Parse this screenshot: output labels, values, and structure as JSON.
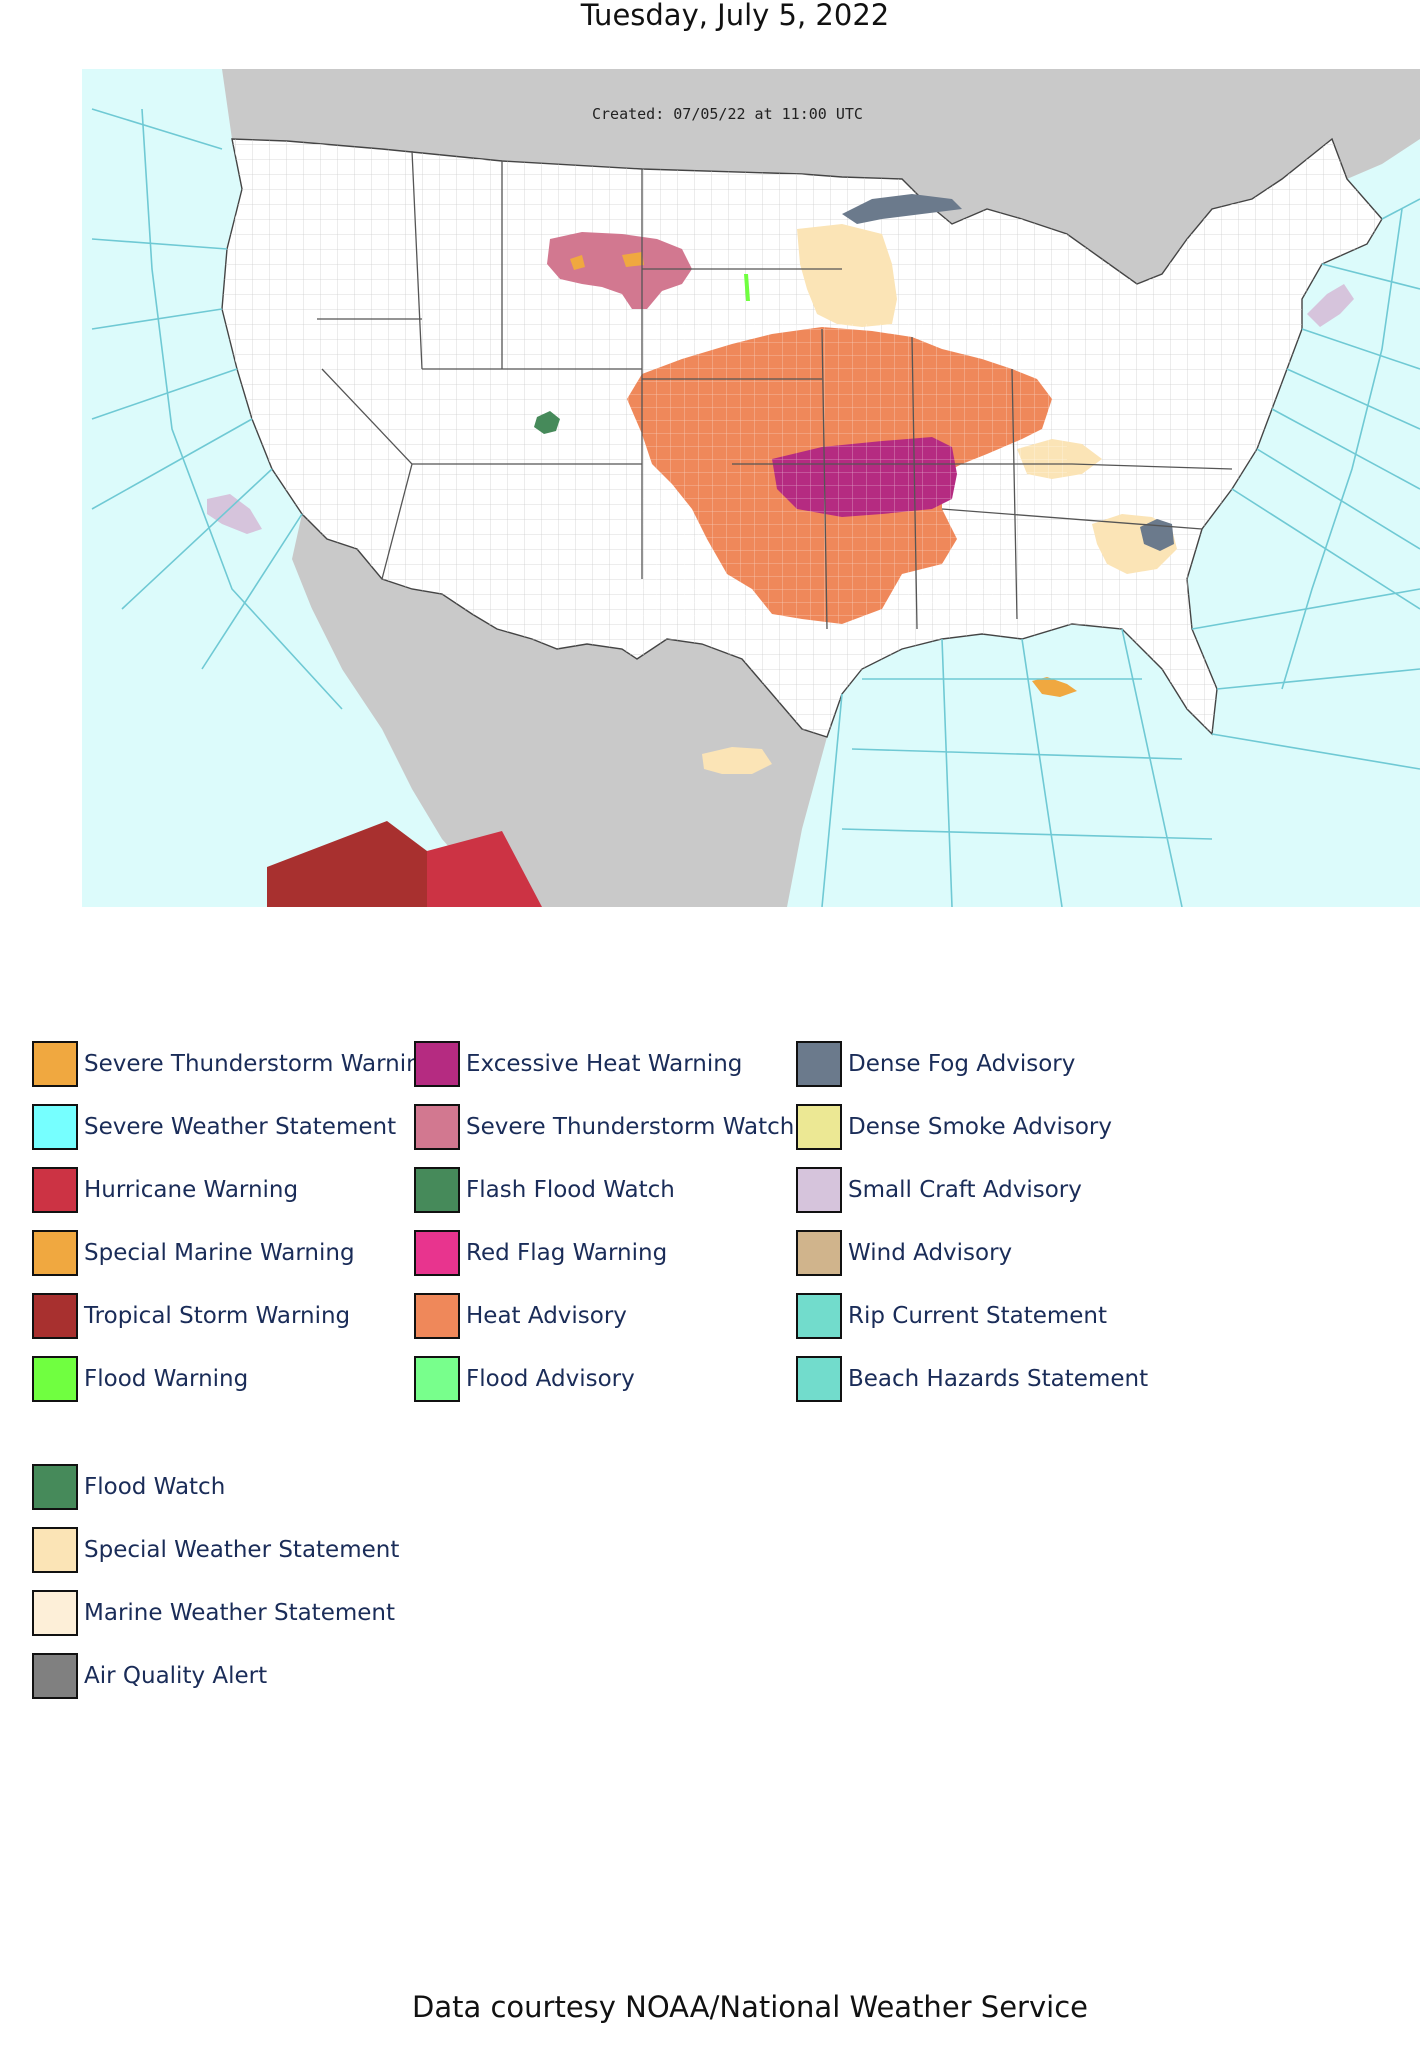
{
  "header": {
    "date": "Tuesday, July 5, 2022"
  },
  "map": {
    "created_stamp": "Created: 07/05/22 at 11:00 UTC",
    "colors": {
      "ocean": "#dcfbfb",
      "foreign_land": "#c9c9c9",
      "us_land": "#ffffff",
      "coast_zone_line": "#6fc9d4"
    }
  },
  "legend": {
    "columns": [
      [
        {
          "label": "Severe Thunderstorm Warning",
          "color": "#f0a840"
        },
        {
          "label": "Severe Weather Statement",
          "color": "#76ffff"
        },
        {
          "label": "Hurricane Warning",
          "color": "#cc3344"
        },
        {
          "label": "Special Marine Warning",
          "color": "#f0a840"
        },
        {
          "label": "Tropical Storm Warning",
          "color": "#a8302f"
        },
        {
          "label": "Flood Warning",
          "color": "#70ff40"
        }
      ],
      [
        {
          "label": "Excessive Heat Warning",
          "color": "#b52b81"
        },
        {
          "label": "Severe Thunderstorm Watch",
          "color": "#d27890"
        },
        {
          "label": "Flash Flood Watch",
          "color": "#468a5a"
        },
        {
          "label": "Red Flag Warning",
          "color": "#e8348e"
        },
        {
          "label": "Heat Advisory",
          "color": "#ef885a"
        },
        {
          "label": "Flood Advisory",
          "color": "#78ff8c"
        }
      ],
      [
        {
          "label": "Dense Fog Advisory",
          "color": "#6b7a8c"
        },
        {
          "label": "Dense Smoke Advisory",
          "color": "#ece894"
        },
        {
          "label": "Small Craft Advisory",
          "color": "#d6c4dc"
        },
        {
          "label": "Wind Advisory",
          "color": "#d0b48c"
        },
        {
          "label": "Rip Current Statement",
          "color": "#72dccc"
        },
        {
          "label": "Beach Hazards Statement",
          "color": "#72dccc"
        }
      ]
    ],
    "extra": [
      {
        "label": "Flood Watch",
        "color": "#468a5a"
      },
      {
        "label": "Special Weather Statement",
        "color": "#fbe4b6"
      },
      {
        "label": "Marine Weather Statement",
        "color": "#fdefd8"
      },
      {
        "label": "Air Quality Alert",
        "color": "#808080"
      }
    ]
  },
  "footer": {
    "credit": "Data courtesy NOAA/National Weather Service"
  }
}
